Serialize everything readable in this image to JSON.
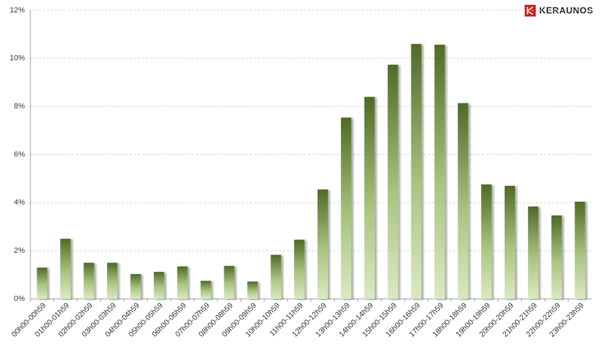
{
  "chart_data": {
    "type": "bar",
    "brand": "KERAUNOS",
    "categories": [
      "00h00-00h59",
      "01h00-01h59",
      "02h00-02h59",
      "03h00-03h59",
      "04h00-04h59",
      "05h00-05h59",
      "06h00-06h59",
      "07h00-07h59",
      "08h00-08h59",
      "09h00-09h59",
      "10h00-10h59",
      "11h00-11h59",
      "12h00-12h59",
      "13h00-13h59",
      "14h00-14h59",
      "15h00-15h59",
      "16h00-16h59",
      "17h00-17h59",
      "18h00-18h59",
      "19h00-19h59",
      "20h00-20h59",
      "21h00-21h59",
      "22h00-22h59",
      "23h00-23h59"
    ],
    "values": [
      1.3,
      2.5,
      1.5,
      1.5,
      1.03,
      1.12,
      1.35,
      0.75,
      1.37,
      0.72,
      1.83,
      2.46,
      4.55,
      7.54,
      8.4,
      9.74,
      10.6,
      10.57,
      8.14,
      4.76,
      4.7,
      3.84,
      3.47,
      4.04
    ],
    "color": "#4e6b26",
    "ylim": [
      0,
      12
    ],
    "yticks": [
      {
        "value": 0,
        "label": "0%"
      },
      {
        "value": 2,
        "label": "2%"
      },
      {
        "value": 4,
        "label": "4%"
      },
      {
        "value": 6,
        "label": "6%"
      },
      {
        "value": 8,
        "label": "8%"
      },
      {
        "value": 10,
        "label": "10%"
      },
      {
        "value": 12,
        "label": "12%"
      }
    ],
    "grid": true
  }
}
